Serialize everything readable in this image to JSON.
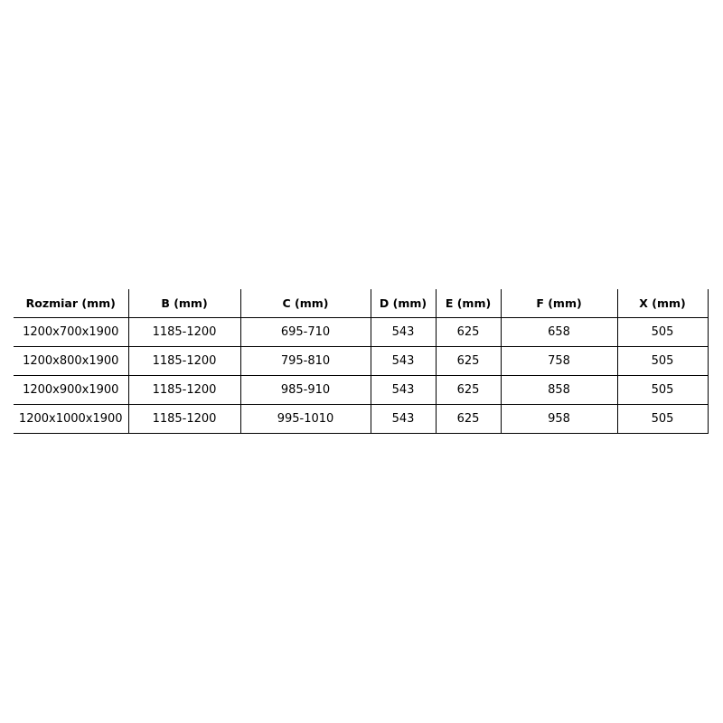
{
  "table": {
    "headers": [
      "Rozmiar (mm)",
      "B (mm)",
      "C (mm)",
      "D (mm)",
      "E (mm)",
      "F (mm)",
      "X (mm)"
    ],
    "rows": [
      [
        "1200x700x1900",
        "1185-1200",
        "695-710",
        "543",
        "625",
        "658",
        "505"
      ],
      [
        "1200x800x1900",
        "1185-1200",
        "795-810",
        "543",
        "625",
        "758",
        "505"
      ],
      [
        "1200x900x1900",
        "1185-1200",
        "985-910",
        "543",
        "625",
        "858",
        "505"
      ],
      [
        "1200x1000x1900",
        "1185-1200",
        "995-1010",
        "543",
        "625",
        "958",
        "505"
      ]
    ]
  }
}
